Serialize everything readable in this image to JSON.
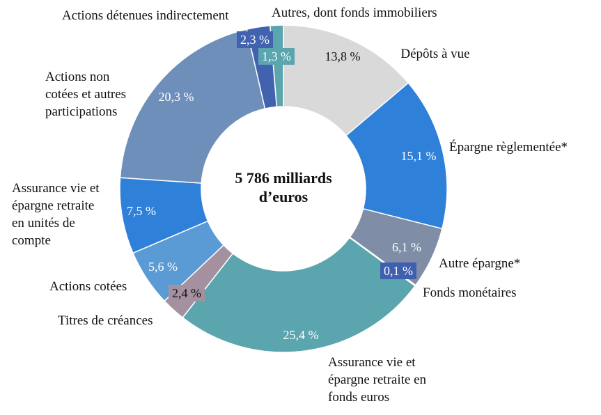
{
  "chart_data": {
    "type": "pie",
    "variant": "donut",
    "center_label": [
      "5 786 milliards",
      "d’euros"
    ],
    "slices": [
      {
        "label": "Dépôts à vue",
        "value": 13.8,
        "value_label": "13,8 %",
        "color": "#d9d9d9",
        "value_color": "#111111"
      },
      {
        "label": "Épargne règlementée*",
        "value": 15.1,
        "value_label": "15,1 %",
        "color": "#2f80d9",
        "value_color": "#ffffff"
      },
      {
        "label": "Autre épargne*",
        "value": 6.1,
        "value_label": "6,1 %",
        "color": "#7f8ea6",
        "value_color": "#ffffff"
      },
      {
        "label": "Fonds monétaires",
        "value": 0.1,
        "value_label": "0,1 %",
        "color": "#3f5fb0",
        "value_color": "#ffffff"
      },
      {
        "label": "Assurance vie et épargne retraite en fonds euros",
        "value": 25.4,
        "value_label": "25,4 %",
        "color": "#5aa5ae",
        "value_color": "#ffffff"
      },
      {
        "label": "Titres de créances",
        "value": 2.4,
        "value_label": "2,4 %",
        "color": "#a4909e",
        "value_color": "#111111"
      },
      {
        "label": "Actions cotées",
        "value": 5.6,
        "value_label": "5,6 %",
        "color": "#5a9bd5",
        "value_color": "#ffffff"
      },
      {
        "label": "Assurance vie et épargne retraite en unités de compte",
        "value": 7.5,
        "value_label": "7,5 %",
        "color": "#2f80d9",
        "value_color": "#ffffff"
      },
      {
        "label": "Actions non cotées et autres participations",
        "value": 20.3,
        "value_label": "20,3 %",
        "color": "#6f8fbb",
        "value_color": "#ffffff"
      },
      {
        "label": "Actions détenues indirectement",
        "value": 2.3,
        "value_label": "2,3 %",
        "color": "#4162ae",
        "value_color": "#ffffff"
      },
      {
        "label": "Autres, dont fonds immobiliers",
        "value": 1.3,
        "value_label": "1,3 %",
        "color": "#5aa5ae",
        "value_color": "#ffffff"
      }
    ]
  }
}
